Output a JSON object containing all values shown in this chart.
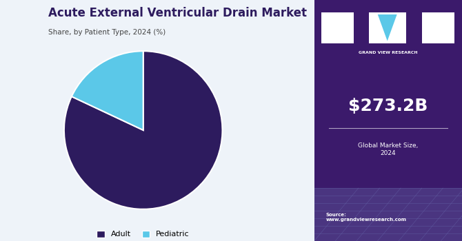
{
  "title": "Acute External Ventricular Drain Market",
  "subtitle": "Share, by Patient Type, 2024 (%)",
  "slices": [
    82,
    18
  ],
  "labels": [
    "Adult",
    "Pediatric"
  ],
  "colors": [
    "#2d1b5e",
    "#5bc8e8"
  ],
  "legend_labels": [
    "Adult",
    "Pediatric"
  ],
  "bg_color": "#eef3f9",
  "right_panel_color": "#3b1a6b",
  "right_panel_bottom_color": "#4a3a8a",
  "market_size": "$273.2B",
  "market_label": "Global Market Size,\n2024",
  "source_text": "Source:\nwww.grandviewresearch.com",
  "title_color": "#2d1b5e",
  "subtitle_color": "#444444",
  "start_angle": 90
}
